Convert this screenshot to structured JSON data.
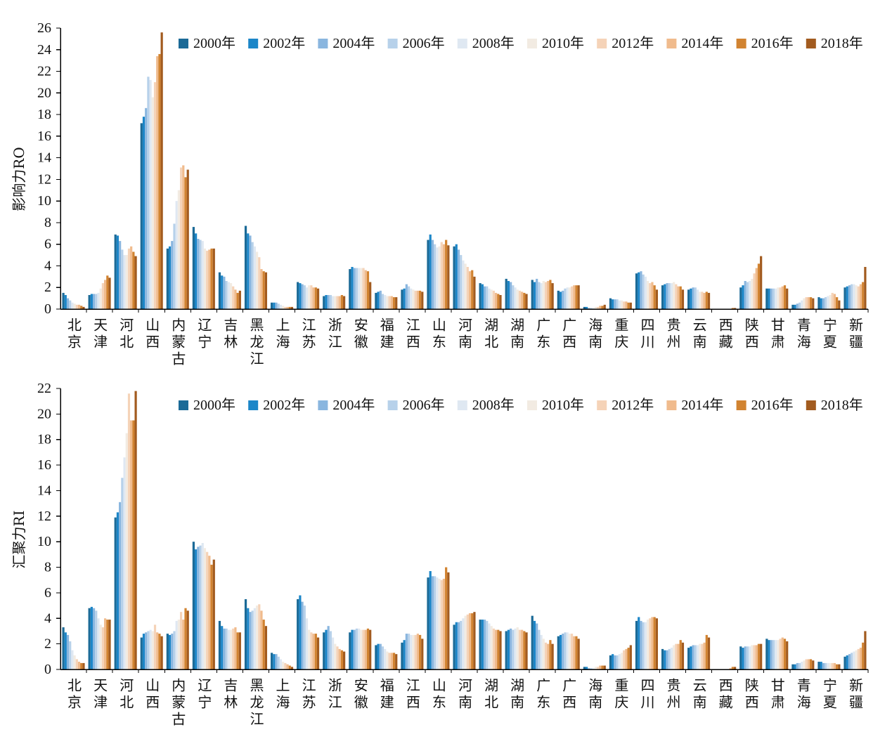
{
  "chart_data": [
    {
      "type": "bar",
      "ylabel": "影响力RO",
      "ylim": [
        0,
        26
      ],
      "yticks": [
        0,
        2,
        4,
        6,
        8,
        10,
        12,
        14,
        16,
        18,
        20,
        22,
        24,
        26
      ],
      "legend": "top-right",
      "categories": [
        "北京",
        "天津",
        "河北",
        "山西",
        "内蒙古",
        "辽宁",
        "吉林",
        "黑龙江",
        "上海",
        "江苏",
        "浙江",
        "安徽",
        "福建",
        "江西",
        "山东",
        "河南",
        "湖北",
        "湖南",
        "广东",
        "广西",
        "海南",
        "重庆",
        "四川",
        "贵州",
        "云南",
        "西藏",
        "陕西",
        "甘肃",
        "青海",
        "宁夏",
        "新疆"
      ],
      "series": [
        {
          "name": "2000年",
          "color": "#1b6a97",
          "values": [
            1.5,
            1.3,
            6.9,
            17.2,
            5.6,
            7.6,
            3.4,
            7.7,
            0.6,
            2.5,
            1.2,
            3.7,
            1.5,
            1.8,
            6.4,
            5.8,
            2.4,
            2.8,
            2.7,
            1.7,
            0.2,
            1.0,
            3.3,
            2.2,
            1.8,
            0.0,
            2.0,
            1.9,
            0.4,
            1.1,
            2.0
          ]
        },
        {
          "name": "2002年",
          "color": "#1c86c8",
          "values": [
            1.3,
            1.4,
            6.8,
            17.8,
            5.8,
            7.0,
            3.1,
            7.0,
            0.6,
            2.4,
            1.3,
            3.9,
            1.6,
            1.9,
            6.9,
            6.0,
            2.3,
            2.6,
            2.5,
            1.6,
            0.2,
            0.9,
            3.4,
            2.3,
            1.9,
            0.0,
            2.2,
            1.9,
            0.4,
            1.0,
            2.1
          ]
        },
        {
          "name": "2004年",
          "color": "#8ab6df",
          "values": [
            1.0,
            1.4,
            6.3,
            18.6,
            6.3,
            6.5,
            3.0,
            6.8,
            0.6,
            2.3,
            1.3,
            3.8,
            1.7,
            2.3,
            6.4,
            5.5,
            2.1,
            2.5,
            2.8,
            1.7,
            0.1,
            0.9,
            3.5,
            2.4,
            2.0,
            0.0,
            2.6,
            1.9,
            0.5,
            1.0,
            2.2
          ]
        },
        {
          "name": "2006年",
          "color": "#b7d1ea",
          "values": [
            0.8,
            1.4,
            5.5,
            21.5,
            7.9,
            6.4,
            2.6,
            6.2,
            0.5,
            2.2,
            1.3,
            3.8,
            1.4,
            2.1,
            6.0,
            5.0,
            2.1,
            2.2,
            2.5,
            1.9,
            0.1,
            0.9,
            3.2,
            2.4,
            2.0,
            0.0,
            2.5,
            1.9,
            0.6,
            1.1,
            2.3
          ]
        },
        {
          "name": "2008年",
          "color": "#dfe8f2",
          "values": [
            0.6,
            1.5,
            5.0,
            21.2,
            10.0,
            6.3,
            2.5,
            5.8,
            0.4,
            2.0,
            1.2,
            3.8,
            1.3,
            1.9,
            5.7,
            4.5,
            1.9,
            2.0,
            2.4,
            2.0,
            0.1,
            0.8,
            3.0,
            2.4,
            1.8,
            0.0,
            2.6,
            1.9,
            0.8,
            1.2,
            2.3
          ]
        },
        {
          "name": "2010年",
          "color": "#f2ebe2",
          "values": [
            0.5,
            1.9,
            5.0,
            19.6,
            11.0,
            5.6,
            2.4,
            5.3,
            0.3,
            2.2,
            1.2,
            3.8,
            1.2,
            1.8,
            5.8,
            4.2,
            1.8,
            1.8,
            2.6,
            2.0,
            0.2,
            0.8,
            2.6,
            2.5,
            1.6,
            0.0,
            2.8,
            2.0,
            1.0,
            1.3,
            2.2
          ]
        },
        {
          "name": "2012年",
          "color": "#f5d3b8",
          "values": [
            0.4,
            2.4,
            5.6,
            21.0,
            13.1,
            5.4,
            2.1,
            4.8,
            0.2,
            2.2,
            1.2,
            3.8,
            1.2,
            1.7,
            6.2,
            3.9,
            1.7,
            1.7,
            2.5,
            2.1,
            0.2,
            0.7,
            2.4,
            2.3,
            1.6,
            0.0,
            3.3,
            2.0,
            1.1,
            1.5,
            2.1
          ]
        },
        {
          "name": "2014年",
          "color": "#f0bb8d",
          "values": [
            0.4,
            2.7,
            5.8,
            23.4,
            13.3,
            5.5,
            1.8,
            3.7,
            0.2,
            2.0,
            1.2,
            3.6,
            1.2,
            1.7,
            6.0,
            3.5,
            1.5,
            1.6,
            2.6,
            2.2,
            0.3,
            0.7,
            2.5,
            2.1,
            1.5,
            0.0,
            3.8,
            2.1,
            1.1,
            1.4,
            2.3
          ]
        },
        {
          "name": "2016年",
          "color": "#d18331",
          "values": [
            0.3,
            3.1,
            5.3,
            23.6,
            12.2,
            5.6,
            1.5,
            3.5,
            0.2,
            2.0,
            1.3,
            3.5,
            1.1,
            1.7,
            6.4,
            3.6,
            1.4,
            1.5,
            2.7,
            2.2,
            0.3,
            0.6,
            2.2,
            2.1,
            1.6,
            0.1,
            4.2,
            2.2,
            1.1,
            1.1,
            2.5
          ]
        },
        {
          "name": "2018年",
          "color": "#a25b1f",
          "values": [
            0.2,
            2.9,
            4.9,
            25.6,
            12.9,
            5.6,
            1.7,
            3.4,
            0.2,
            1.9,
            1.2,
            2.5,
            1.1,
            1.6,
            5.9,
            3.0,
            1.3,
            1.4,
            2.4,
            2.2,
            0.4,
            0.6,
            1.8,
            1.8,
            1.5,
            0.1,
            4.9,
            1.9,
            1.0,
            0.8,
            3.9
          ]
        }
      ]
    },
    {
      "type": "bar",
      "ylabel": "汇聚力RI",
      "ylim": [
        0,
        22
      ],
      "yticks": [
        0,
        2,
        4,
        6,
        8,
        10,
        12,
        14,
        16,
        18,
        20,
        22
      ],
      "legend": "top-right",
      "categories": [
        "北京",
        "天津",
        "河北",
        "山西",
        "内蒙古",
        "辽宁",
        "吉林",
        "黑龙江",
        "上海",
        "江苏",
        "浙江",
        "安徽",
        "福建",
        "江西",
        "山东",
        "河南",
        "湖北",
        "湖南",
        "广东",
        "广西",
        "海南",
        "重庆",
        "四川",
        "贵州",
        "云南",
        "西藏",
        "陕西",
        "甘肃",
        "青海",
        "宁夏",
        "新疆"
      ],
      "series": [
        {
          "name": "2000年",
          "color": "#1b6a97",
          "values": [
            3.3,
            4.8,
            11.9,
            2.5,
            2.8,
            10.0,
            3.8,
            5.5,
            1.3,
            5.5,
            2.9,
            2.9,
            1.9,
            2.1,
            7.2,
            3.5,
            3.9,
            3.0,
            4.2,
            2.6,
            0.2,
            1.1,
            3.8,
            1.6,
            1.7,
            0.0,
            1.8,
            2.4,
            0.4,
            0.6,
            1.0
          ]
        },
        {
          "name": "2002年",
          "color": "#1c86c8",
          "values": [
            2.9,
            4.9,
            12.3,
            2.8,
            2.7,
            9.4,
            3.4,
            4.8,
            1.2,
            5.8,
            3.1,
            3.1,
            2.0,
            2.3,
            7.7,
            3.7,
            3.9,
            3.1,
            3.8,
            2.7,
            0.2,
            1.2,
            4.1,
            1.5,
            1.8,
            0.0,
            1.7,
            2.3,
            0.4,
            0.6,
            1.1
          ]
        },
        {
          "name": "2004年",
          "color": "#8ab6df",
          "values": [
            2.7,
            4.8,
            13.1,
            2.9,
            2.8,
            9.6,
            3.2,
            4.5,
            1.2,
            5.3,
            3.4,
            3.1,
            2.0,
            2.8,
            7.3,
            3.7,
            3.9,
            3.2,
            3.6,
            2.8,
            0.1,
            1.1,
            3.8,
            1.5,
            1.9,
            0.0,
            1.8,
            2.3,
            0.5,
            0.5,
            1.2
          ]
        },
        {
          "name": "2006年",
          "color": "#b7d1ea",
          "values": [
            2.2,
            4.6,
            15.0,
            3.0,
            3.0,
            9.7,
            3.2,
            4.6,
            1.0,
            5.0,
            3.0,
            3.2,
            1.8,
            2.8,
            7.3,
            3.8,
            3.8,
            3.1,
            3.1,
            2.9,
            0.1,
            1.1,
            3.7,
            1.6,
            1.9,
            0.0,
            1.8,
            2.3,
            0.5,
            0.5,
            1.3
          ]
        },
        {
          "name": "2008年",
          "color": "#dfe8f2",
          "values": [
            1.5,
            4.0,
            16.6,
            3.1,
            3.8,
            9.9,
            3.1,
            4.8,
            0.8,
            4.0,
            2.5,
            3.2,
            1.6,
            2.7,
            7.2,
            4.0,
            3.6,
            3.2,
            2.7,
            2.9,
            0.1,
            1.2,
            3.7,
            1.7,
            1.9,
            0.0,
            1.8,
            2.3,
            0.6,
            0.5,
            1.4
          ]
        },
        {
          "name": "2010年",
          "color": "#f2ebe2",
          "values": [
            1.1,
            3.5,
            18.5,
            3.0,
            3.9,
            9.5,
            3.1,
            5.0,
            0.6,
            3.1,
            2.0,
            3.1,
            1.4,
            2.7,
            7.1,
            4.2,
            3.4,
            3.3,
            2.4,
            2.8,
            0.2,
            1.3,
            3.9,
            1.9,
            2.0,
            0.0,
            1.9,
            2.3,
            0.7,
            0.5,
            1.5
          ]
        },
        {
          "name": "2012年",
          "color": "#f5d3b8",
          "values": [
            0.8,
            3.3,
            21.6,
            3.5,
            4.5,
            9.2,
            3.2,
            5.1,
            0.5,
            2.9,
            1.8,
            3.1,
            1.3,
            2.7,
            7.0,
            4.3,
            3.2,
            3.1,
            2.1,
            2.8,
            0.2,
            1.5,
            4.0,
            2.0,
            2.0,
            0.0,
            1.9,
            2.4,
            0.8,
            0.5,
            1.6
          ]
        },
        {
          "name": "2014年",
          "color": "#f0bb8d",
          "values": [
            0.6,
            4.0,
            19.5,
            2.9,
            3.9,
            8.9,
            3.3,
            4.6,
            0.4,
            2.8,
            1.6,
            3.1,
            1.3,
            2.8,
            7.1,
            4.4,
            3.1,
            3.1,
            2.0,
            2.6,
            0.3,
            1.6,
            4.1,
            2.0,
            2.1,
            0.1,
            1.9,
            2.5,
            0.8,
            0.5,
            1.7
          ]
        },
        {
          "name": "2016年",
          "color": "#d18331",
          "values": [
            0.5,
            3.9,
            19.5,
            2.8,
            4.8,
            8.2,
            2.9,
            3.9,
            0.3,
            2.8,
            1.5,
            3.2,
            1.3,
            2.7,
            8.0,
            4.4,
            3.1,
            3.0,
            2.3,
            2.6,
            0.3,
            1.7,
            4.1,
            2.3,
            2.7,
            0.2,
            2.0,
            2.4,
            0.8,
            0.4,
            2.1
          ]
        },
        {
          "name": "2018年",
          "color": "#a25b1f",
          "values": [
            0.5,
            3.9,
            21.8,
            2.6,
            4.6,
            8.6,
            2.9,
            3.4,
            0.2,
            2.5,
            1.4,
            3.1,
            1.2,
            2.4,
            7.6,
            4.5,
            3.0,
            2.9,
            2.0,
            2.4,
            0.3,
            1.9,
            4.0,
            2.1,
            2.5,
            0.2,
            2.0,
            2.2,
            0.7,
            0.4,
            3.0
          ]
        }
      ]
    }
  ]
}
